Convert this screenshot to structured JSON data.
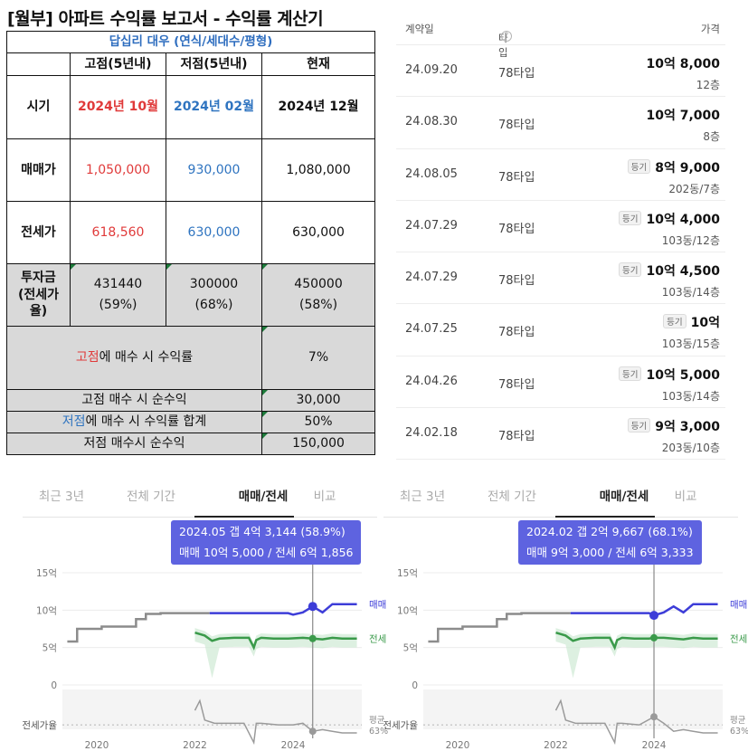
{
  "report": {
    "title": "[월부] 아파트 수익률 보고서 - 수익률 계산기",
    "apartment": "답십리 대우 (연식/세대수/평형)",
    "headers": [
      "고점(5년내)",
      "저점(5년내)",
      "현재"
    ],
    "rows": [
      {
        "label": "시기",
        "values": [
          "2024년 10월",
          "2024년 02월",
          "2024년 12월"
        ]
      },
      {
        "label": "매매가",
        "values": [
          "1,050,000",
          "930,000",
          "1,080,000"
        ]
      },
      {
        "label": "전세가",
        "values": [
          "618,560",
          "630,000",
          "630,000"
        ]
      }
    ],
    "investment": {
      "label_lines": [
        "투자금",
        "(전세가",
        "율)"
      ],
      "amounts": [
        "431440",
        "300000",
        "450000"
      ],
      "ratios": [
        "(59%)",
        "(68%)",
        "(58%)"
      ]
    },
    "summary": {
      "high_rate": {
        "hl": "고점",
        "text": "에 매수 시 수익률",
        "value": "7%"
      },
      "high_profit": {
        "label": "고점 매수 시 순수익",
        "value": "30,000"
      },
      "low_rate": {
        "hl": "저점",
        "text": "에 매수 시 수익률 합계",
        "value": "50%"
      },
      "low_profit": {
        "label": "저점 매수시 순수익",
        "value": "150,000"
      }
    }
  },
  "transactions": {
    "headers": {
      "date": "계약일",
      "type": "타입",
      "price": "가격",
      "help_glyph": "?"
    },
    "rows": [
      {
        "date": "24.09.20",
        "type": "78타입",
        "badge": "",
        "price": "10억 8,000",
        "floor": "12층"
      },
      {
        "date": "24.08.30",
        "type": "78타입",
        "badge": "",
        "price": "10억 7,000",
        "floor": "8층"
      },
      {
        "date": "24.08.05",
        "type": "78타입",
        "badge": "등기",
        "price": "8억 9,000",
        "floor": "202동/7층"
      },
      {
        "date": "24.07.29",
        "type": "78타입",
        "badge": "등기",
        "price": "10억 4,000",
        "floor": "103동/12층"
      },
      {
        "date": "24.07.29",
        "type": "78타입",
        "badge": "등기",
        "price": "10억 4,500",
        "floor": "103동/14층"
      },
      {
        "date": "24.07.25",
        "type": "78타입",
        "badge": "등기",
        "price": "10억",
        "floor": "103동/15층"
      },
      {
        "date": "24.04.26",
        "type": "78타입",
        "badge": "등기",
        "price": "10억 5,000",
        "floor": "103동/14층"
      },
      {
        "date": "24.02.18",
        "type": "78타입",
        "badge": "등기",
        "price": "9억 3,000",
        "floor": "203동/10층"
      }
    ]
  },
  "chart_tabs": [
    "최근 3년",
    "전체 기간",
    "매매/전세",
    "비교"
  ],
  "chart_tab_active": 2,
  "colors": {
    "sale": "#3d3dd8",
    "jeonse": "#3a9a4a",
    "history": "#8c8c8c",
    "tooltip": "#5e63e0",
    "red": "#e03a3a",
    "blue": "#2f74c0"
  },
  "chart_data": [
    {
      "type": "line",
      "tooltip": {
        "line1": "2024.05  갭 4억 3,144 (58.9%)",
        "line2": "매매 10억 5,000 / 전세 6억 1,856"
      },
      "y_ticks": [
        "15억",
        "10억",
        "5억",
        "0"
      ],
      "ylim": [
        0,
        15
      ],
      "ratio_label": "전세가율",
      "avg_label": "평균",
      "avg_value": "63%",
      "x_ticks": [
        "2020",
        "2022",
        "2024"
      ],
      "series": [
        {
          "name": "매매",
          "x": [
            2019.4,
            2019.6,
            2019.6,
            2020.1,
            2020.1,
            2020.8,
            2020.8,
            2021.0,
            2021.0,
            2021.3,
            2021.3,
            2022.0,
            2022.3,
            2022.7,
            2023.1,
            2023.5,
            2023.9,
            2024.0,
            2024.2,
            2024.4,
            2024.6,
            2024.8,
            2025.0,
            2025.3
          ],
          "values": [
            5.8,
            5.8,
            7.5,
            7.5,
            7.8,
            7.8,
            8.8,
            8.8,
            9.5,
            9.5,
            9.6,
            9.6,
            9.6,
            9.6,
            9.6,
            9.6,
            9.6,
            9.4,
            9.7,
            10.5,
            9.7,
            10.8,
            10.8,
            10.8
          ]
        },
        {
          "name": "전세",
          "x": [
            2022.0,
            2022.2,
            2022.35,
            2022.5,
            2022.8,
            2023.1,
            2023.2,
            2023.25,
            2023.35,
            2023.6,
            2023.9,
            2024.2,
            2024.4,
            2024.6,
            2024.8,
            2025.0,
            2025.3
          ],
          "values": [
            7.0,
            6.6,
            5.9,
            6.2,
            6.3,
            6.3,
            5.0,
            6.0,
            6.3,
            6.2,
            6.2,
            6.3,
            6.2,
            6.1,
            6.3,
            6.2,
            6.2
          ]
        }
      ],
      "split_x": 2022.3,
      "marker_x": 2024.4,
      "ratio_points": {
        "x": [
          2022.0,
          2022.1,
          2022.2,
          2022.4,
          2022.7,
          2023.0,
          2023.2,
          2023.25,
          2023.35,
          2023.7,
          2024.0,
          2024.2,
          2024.4,
          2024.6,
          2024.8,
          2025.0,
          2025.3
        ],
        "y": [
          72,
          78,
          66,
          64,
          64,
          64,
          52,
          64,
          64,
          63,
          63,
          64,
          59,
          60,
          59,
          58,
          58
        ]
      },
      "ratio_avg": 63
    },
    {
      "type": "line",
      "tooltip": {
        "line1": "2024.02  갭 2억 9,667 (68.1%)",
        "line2": "매매 9억 3,000 / 전세 6억 3,333"
      },
      "y_ticks": [
        "15억",
        "10억",
        "5억",
        "0"
      ],
      "ylim": [
        0,
        15
      ],
      "ratio_label": "전세가율",
      "avg_label": "평균",
      "avg_value": "63%",
      "x_ticks": [
        "2020",
        "2022",
        "2024"
      ],
      "series": [
        {
          "name": "매매",
          "x": [
            2019.4,
            2019.6,
            2019.6,
            2020.1,
            2020.1,
            2020.8,
            2020.8,
            2021.0,
            2021.0,
            2021.3,
            2021.3,
            2022.0,
            2022.3,
            2022.7,
            2023.1,
            2023.5,
            2023.9,
            2024.0,
            2024.2,
            2024.4,
            2024.6,
            2024.8,
            2025.0,
            2025.3
          ],
          "values": [
            5.8,
            5.8,
            7.5,
            7.5,
            7.8,
            7.8,
            8.8,
            8.8,
            9.5,
            9.5,
            9.6,
            9.6,
            9.6,
            9.6,
            9.6,
            9.6,
            9.6,
            9.3,
            9.7,
            10.5,
            9.7,
            10.8,
            10.8,
            10.8
          ]
        },
        {
          "name": "전세",
          "x": [
            2022.0,
            2022.2,
            2022.35,
            2022.5,
            2022.8,
            2023.1,
            2023.2,
            2023.25,
            2023.35,
            2023.6,
            2023.9,
            2024.0,
            2024.2,
            2024.4,
            2024.6,
            2024.8,
            2025.0,
            2025.3
          ],
          "values": [
            7.0,
            6.6,
            5.9,
            6.2,
            6.3,
            6.3,
            5.0,
            6.0,
            6.3,
            6.2,
            6.2,
            6.3,
            6.3,
            6.2,
            6.1,
            6.3,
            6.2,
            6.2
          ]
        }
      ],
      "split_x": 2022.3,
      "marker_x": 2024.0,
      "ratio_points": {
        "x": [
          2022.0,
          2022.1,
          2022.2,
          2022.4,
          2022.7,
          2023.0,
          2023.2,
          2023.25,
          2023.35,
          2023.7,
          2024.0,
          2024.2,
          2024.4,
          2024.6,
          2024.8,
          2025.0,
          2025.3
        ],
        "y": [
          72,
          78,
          66,
          64,
          64,
          64,
          52,
          64,
          64,
          63,
          68,
          64,
          59,
          60,
          59,
          58,
          58
        ]
      },
      "ratio_avg": 63
    }
  ]
}
